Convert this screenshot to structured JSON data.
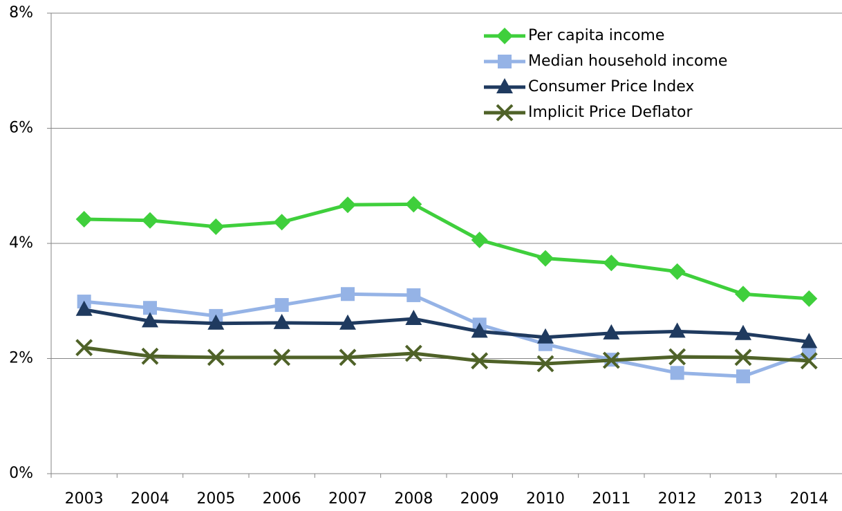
{
  "chart_data": {
    "type": "line",
    "categories": [
      "2003",
      "2004",
      "2005",
      "2006",
      "2007",
      "2008",
      "2009",
      "2010",
      "2011",
      "2012",
      "2013",
      "2014"
    ],
    "series": [
      {
        "name": "Per capita income",
        "color": "#3fcf3c",
        "marker": "diamond",
        "values": [
          4.42,
          4.4,
          4.29,
          4.37,
          4.67,
          4.68,
          4.06,
          3.74,
          3.66,
          3.51,
          3.12,
          3.04
        ]
      },
      {
        "name": "Median household income",
        "color": "#95b3e6",
        "marker": "square",
        "values": [
          2.99,
          2.88,
          2.74,
          2.93,
          3.12,
          3.1,
          2.59,
          2.25,
          1.98,
          1.75,
          1.69,
          2.1
        ]
      },
      {
        "name": "Consumer Price Index",
        "color": "#1f3a5f",
        "marker": "triangle",
        "values": [
          2.85,
          2.65,
          2.61,
          2.62,
          2.61,
          2.69,
          2.47,
          2.37,
          2.44,
          2.47,
          2.43,
          2.29
        ]
      },
      {
        "name": "Implicit Price Deflator",
        "color": "#4f6228",
        "marker": "x",
        "values": [
          2.19,
          2.04,
          2.02,
          2.02,
          2.02,
          2.09,
          1.96,
          1.91,
          1.97,
          2.03,
          2.02,
          1.96
        ]
      }
    ],
    "ylim": [
      0,
      8
    ],
    "yticks": [
      {
        "value": 0,
        "label": "0%"
      },
      {
        "value": 2,
        "label": "2%"
      },
      {
        "value": 4,
        "label": "4%"
      },
      {
        "value": 6,
        "label": "6%"
      },
      {
        "value": 8,
        "label": "8%"
      }
    ],
    "grid": true,
    "legend": "top-right"
  }
}
